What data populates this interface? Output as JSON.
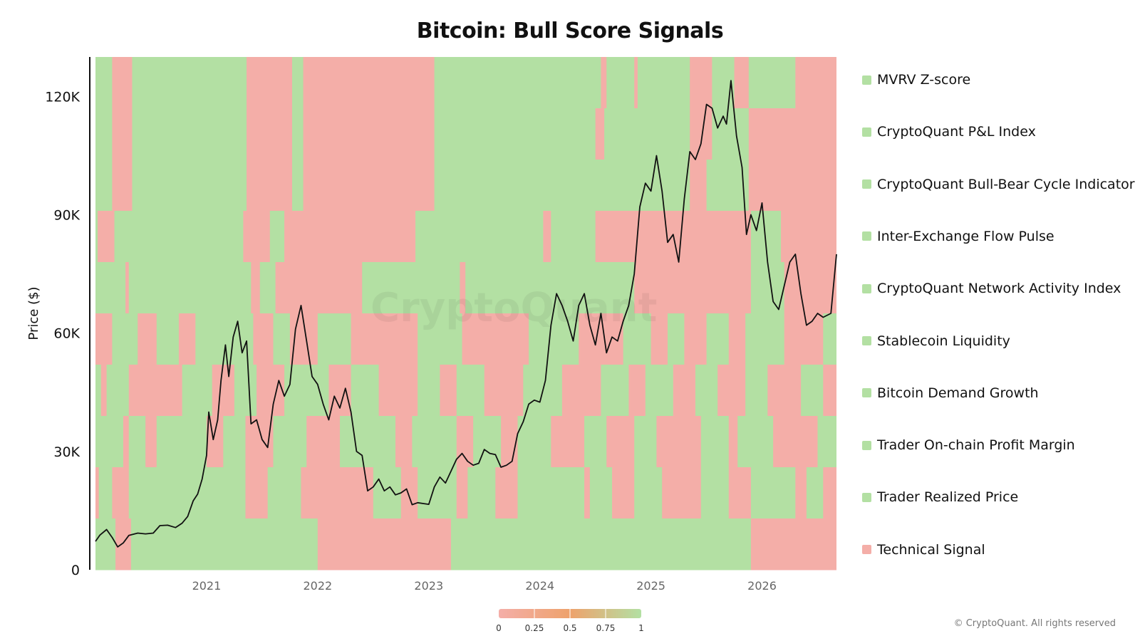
{
  "title": "Bitcoin: Bull Score Signals",
  "copyright": "© CryptoQuant. All rights reserved",
  "watermark": "CryptoQuant",
  "colors": {
    "bull": "#b3e0a3",
    "bear": "#f4aea8",
    "price_line": "#111111"
  },
  "chart_data": {
    "type": "heatmap",
    "title": "Bitcoin: Bull Score Signals",
    "ylabel": "Price ($)",
    "xlabel": "",
    "x_range": [
      2020.0,
      2026.67
    ],
    "ylim": [
      0,
      130000
    ],
    "x_ticks": [
      {
        "value": 2021,
        "label": "2021"
      },
      {
        "value": 2022,
        "label": "2022"
      },
      {
        "value": 2023,
        "label": "2023"
      },
      {
        "value": 2024,
        "label": "2024"
      },
      {
        "value": 2025,
        "label": "2025"
      },
      {
        "value": 2026,
        "label": "2026"
      }
    ],
    "y_ticks": [
      {
        "value": 0,
        "label": "0"
      },
      {
        "value": 30000,
        "label": "30K"
      },
      {
        "value": 60000,
        "label": "60K"
      },
      {
        "value": 90000,
        "label": "90K"
      },
      {
        "value": 120000,
        "label": "120K"
      }
    ],
    "legend_placement": "right",
    "signals": [
      {
        "name": "MVRV Z-score",
        "legend_color": "#b3e0a3",
        "bear_periods": [
          [
            2020.15,
            2020.33
          ],
          [
            2021.36,
            2021.77
          ],
          [
            2021.87,
            2023.05
          ],
          [
            2024.55,
            2024.6
          ],
          [
            2024.85,
            2024.88
          ],
          [
            2025.35,
            2025.55
          ],
          [
            2025.75,
            2025.88
          ],
          [
            2026.3,
            2026.67
          ]
        ]
      },
      {
        "name": "CryptoQuant P&L Index",
        "legend_color": "#b3e0a3",
        "bear_periods": [
          [
            2020.15,
            2020.33
          ],
          [
            2021.36,
            2021.77
          ],
          [
            2021.87,
            2023.05
          ],
          [
            2024.5,
            2024.58
          ],
          [
            2025.35,
            2025.55
          ],
          [
            2025.88,
            2026.67
          ]
        ]
      },
      {
        "name": "CryptoQuant Bull-Bear Cycle Indicator",
        "legend_color": "#b3e0a3",
        "bear_periods": [
          [
            2020.15,
            2020.33
          ],
          [
            2021.36,
            2021.77
          ],
          [
            2021.87,
            2023.05
          ],
          [
            2025.35,
            2025.5
          ],
          [
            2025.88,
            2026.67
          ]
        ]
      },
      {
        "name": "Inter-Exchange Flow Pulse",
        "legend_color": "#b3e0a3",
        "bear_periods": [
          [
            2020.02,
            2020.17
          ],
          [
            2021.33,
            2021.57
          ],
          [
            2021.7,
            2022.88
          ],
          [
            2024.03,
            2024.1
          ],
          [
            2024.5,
            2025.9
          ],
          [
            2026.17,
            2026.67
          ]
        ]
      },
      {
        "name": "CryptoQuant Network Activity Index",
        "legend_color": "#b3e0a3",
        "bear_periods": [
          [
            2020.27,
            2020.3
          ],
          [
            2021.4,
            2021.48
          ],
          [
            2021.62,
            2022.4
          ],
          [
            2023.28,
            2023.33
          ],
          [
            2024.85,
            2025.9
          ],
          [
            2026.2,
            2026.67
          ]
        ]
      },
      {
        "name": "Stablecoin Liquidity",
        "legend_color": "#b3e0a3",
        "bear_periods": [
          [
            2020.0,
            2020.15
          ],
          [
            2020.38,
            2020.55
          ],
          [
            2020.75,
            2020.9
          ],
          [
            2021.42,
            2021.6
          ],
          [
            2021.75,
            2022.0
          ],
          [
            2022.3,
            2022.9
          ],
          [
            2023.3,
            2023.9
          ],
          [
            2024.35,
            2024.75
          ],
          [
            2025.0,
            2025.15
          ],
          [
            2025.3,
            2025.5
          ],
          [
            2025.7,
            2025.85
          ],
          [
            2026.2,
            2026.55
          ]
        ]
      },
      {
        "name": "Bitcoin Demand Growth",
        "legend_color": "#b3e0a3",
        "bear_periods": [
          [
            2020.05,
            2020.1
          ],
          [
            2020.3,
            2020.78
          ],
          [
            2021.05,
            2021.25
          ],
          [
            2021.45,
            2021.7
          ],
          [
            2022.1,
            2022.3
          ],
          [
            2022.55,
            2022.9
          ],
          [
            2023.1,
            2023.25
          ],
          [
            2023.5,
            2023.85
          ],
          [
            2024.2,
            2024.55
          ],
          [
            2024.8,
            2024.95
          ],
          [
            2025.2,
            2025.4
          ],
          [
            2025.6,
            2025.85
          ],
          [
            2026.05,
            2026.35
          ],
          [
            2026.55,
            2026.67
          ]
        ]
      },
      {
        "name": "Trader On-chain Profit Margin",
        "legend_color": "#b3e0a3",
        "bear_periods": [
          [
            2020.25,
            2020.3
          ],
          [
            2020.45,
            2020.55
          ],
          [
            2021.0,
            2021.15
          ],
          [
            2021.35,
            2021.6
          ],
          [
            2021.9,
            2022.2
          ],
          [
            2022.7,
            2022.85
          ],
          [
            2023.25,
            2023.4
          ],
          [
            2023.65,
            2023.8
          ],
          [
            2024.1,
            2024.4
          ],
          [
            2024.6,
            2024.85
          ],
          [
            2025.05,
            2025.45
          ],
          [
            2025.7,
            2025.78
          ],
          [
            2026.1,
            2026.5
          ]
        ]
      },
      {
        "name": "Trader Realized Price",
        "legend_color": "#b3e0a3",
        "bear_periods": [
          [
            2020.0,
            2020.03
          ],
          [
            2020.15,
            2020.3
          ],
          [
            2021.35,
            2021.55
          ],
          [
            2021.85,
            2022.5
          ],
          [
            2022.75,
            2022.9
          ],
          [
            2023.25,
            2023.35
          ],
          [
            2023.6,
            2023.8
          ],
          [
            2024.4,
            2024.45
          ],
          [
            2024.65,
            2024.85
          ],
          [
            2025.1,
            2025.45
          ],
          [
            2025.7,
            2025.9
          ],
          [
            2026.3,
            2026.4
          ],
          [
            2026.55,
            2026.67
          ]
        ]
      },
      {
        "name": "Technical Signal",
        "legend_color": "#f4aea8",
        "bear_periods": [
          [
            2020.18,
            2020.32
          ],
          [
            2022.0,
            2023.2
          ],
          [
            2025.9,
            2026.67
          ]
        ]
      }
    ],
    "series": [
      {
        "values": [
          [
            2020.0,
            7200
          ],
          [
            2020.04,
            8800
          ],
          [
            2020.1,
            10200
          ],
          [
            2020.15,
            8200
          ],
          [
            2020.2,
            5800
          ],
          [
            2020.25,
            6800
          ],
          [
            2020.3,
            8700
          ],
          [
            2020.38,
            9300
          ],
          [
            2020.45,
            9100
          ],
          [
            2020.52,
            9300
          ],
          [
            2020.58,
            11200
          ],
          [
            2020.65,
            11300
          ],
          [
            2020.72,
            10700
          ],
          [
            2020.78,
            11800
          ],
          [
            2020.83,
            13500
          ],
          [
            2020.88,
            17500
          ],
          [
            2020.92,
            19200
          ],
          [
            2020.96,
            23000
          ],
          [
            2021.0,
            29000
          ],
          [
            2021.02,
            40000
          ],
          [
            2021.06,
            33000
          ],
          [
            2021.1,
            38000
          ],
          [
            2021.13,
            48000
          ],
          [
            2021.17,
            57000
          ],
          [
            2021.2,
            49000
          ],
          [
            2021.24,
            59000
          ],
          [
            2021.28,
            63000
          ],
          [
            2021.32,
            55000
          ],
          [
            2021.36,
            58000
          ],
          [
            2021.4,
            37000
          ],
          [
            2021.45,
            38000
          ],
          [
            2021.5,
            33000
          ],
          [
            2021.55,
            31000
          ],
          [
            2021.6,
            42000
          ],
          [
            2021.65,
            48000
          ],
          [
            2021.7,
            44000
          ],
          [
            2021.75,
            47000
          ],
          [
            2021.8,
            61000
          ],
          [
            2021.85,
            67000
          ],
          [
            2021.9,
            58000
          ],
          [
            2021.95,
            49000
          ],
          [
            2022.0,
            47000
          ],
          [
            2022.05,
            42000
          ],
          [
            2022.1,
            38000
          ],
          [
            2022.15,
            44000
          ],
          [
            2022.2,
            41000
          ],
          [
            2022.25,
            46000
          ],
          [
            2022.3,
            40000
          ],
          [
            2022.35,
            30000
          ],
          [
            2022.4,
            29000
          ],
          [
            2022.45,
            20000
          ],
          [
            2022.5,
            21000
          ],
          [
            2022.55,
            23000
          ],
          [
            2022.6,
            20000
          ],
          [
            2022.65,
            21000
          ],
          [
            2022.7,
            19000
          ],
          [
            2022.75,
            19500
          ],
          [
            2022.8,
            20500
          ],
          [
            2022.85,
            16500
          ],
          [
            2022.9,
            17000
          ],
          [
            2022.95,
            16800
          ],
          [
            2023.0,
            16600
          ],
          [
            2023.05,
            21000
          ],
          [
            2023.1,
            23500
          ],
          [
            2023.15,
            22000
          ],
          [
            2023.2,
            25000
          ],
          [
            2023.25,
            28000
          ],
          [
            2023.3,
            29500
          ],
          [
            2023.35,
            27500
          ],
          [
            2023.4,
            26500
          ],
          [
            2023.45,
            27000
          ],
          [
            2023.5,
            30500
          ],
          [
            2023.55,
            29500
          ],
          [
            2023.6,
            29200
          ],
          [
            2023.65,
            26000
          ],
          [
            2023.7,
            26500
          ],
          [
            2023.75,
            27500
          ],
          [
            2023.8,
            34500
          ],
          [
            2023.85,
            37500
          ],
          [
            2023.9,
            42000
          ],
          [
            2023.95,
            43000
          ],
          [
            2024.0,
            42500
          ],
          [
            2024.05,
            48000
          ],
          [
            2024.1,
            62000
          ],
          [
            2024.15,
            70000
          ],
          [
            2024.2,
            67000
          ],
          [
            2024.25,
            63000
          ],
          [
            2024.3,
            58000
          ],
          [
            2024.35,
            67000
          ],
          [
            2024.4,
            70000
          ],
          [
            2024.45,
            62000
          ],
          [
            2024.5,
            57000
          ],
          [
            2024.55,
            65000
          ],
          [
            2024.6,
            55000
          ],
          [
            2024.65,
            59000
          ],
          [
            2024.7,
            58000
          ],
          [
            2024.75,
            63000
          ],
          [
            2024.8,
            67000
          ],
          [
            2024.85,
            75000
          ],
          [
            2024.9,
            92000
          ],
          [
            2024.95,
            98000
          ],
          [
            2025.0,
            96000
          ],
          [
            2025.05,
            105000
          ],
          [
            2025.1,
            96000
          ],
          [
            2025.15,
            83000
          ],
          [
            2025.2,
            85000
          ],
          [
            2025.25,
            78000
          ],
          [
            2025.3,
            94000
          ],
          [
            2025.35,
            106000
          ],
          [
            2025.4,
            104000
          ],
          [
            2025.45,
            108000
          ],
          [
            2025.5,
            118000
          ],
          [
            2025.55,
            117000
          ],
          [
            2025.6,
            112000
          ],
          [
            2025.65,
            115000
          ],
          [
            2025.68,
            113000
          ],
          [
            2025.72,
            124000
          ],
          [
            2025.77,
            110000
          ],
          [
            2025.82,
            102000
          ],
          [
            2025.86,
            85000
          ],
          [
            2025.9,
            90000
          ],
          [
            2025.95,
            86000
          ],
          [
            2026.0,
            93000
          ],
          [
            2026.05,
            78000
          ],
          [
            2026.1,
            68000
          ],
          [
            2026.15,
            66000
          ],
          [
            2026.2,
            72000
          ],
          [
            2026.25,
            78000
          ],
          [
            2026.3,
            80000
          ],
          [
            2026.35,
            70000
          ],
          [
            2026.4,
            62000
          ],
          [
            2026.45,
            63000
          ],
          [
            2026.5,
            65000
          ],
          [
            2026.55,
            64000
          ],
          [
            2026.62,
            65000
          ],
          [
            2026.67,
            80000
          ]
        ]
      }
    ]
  }
}
